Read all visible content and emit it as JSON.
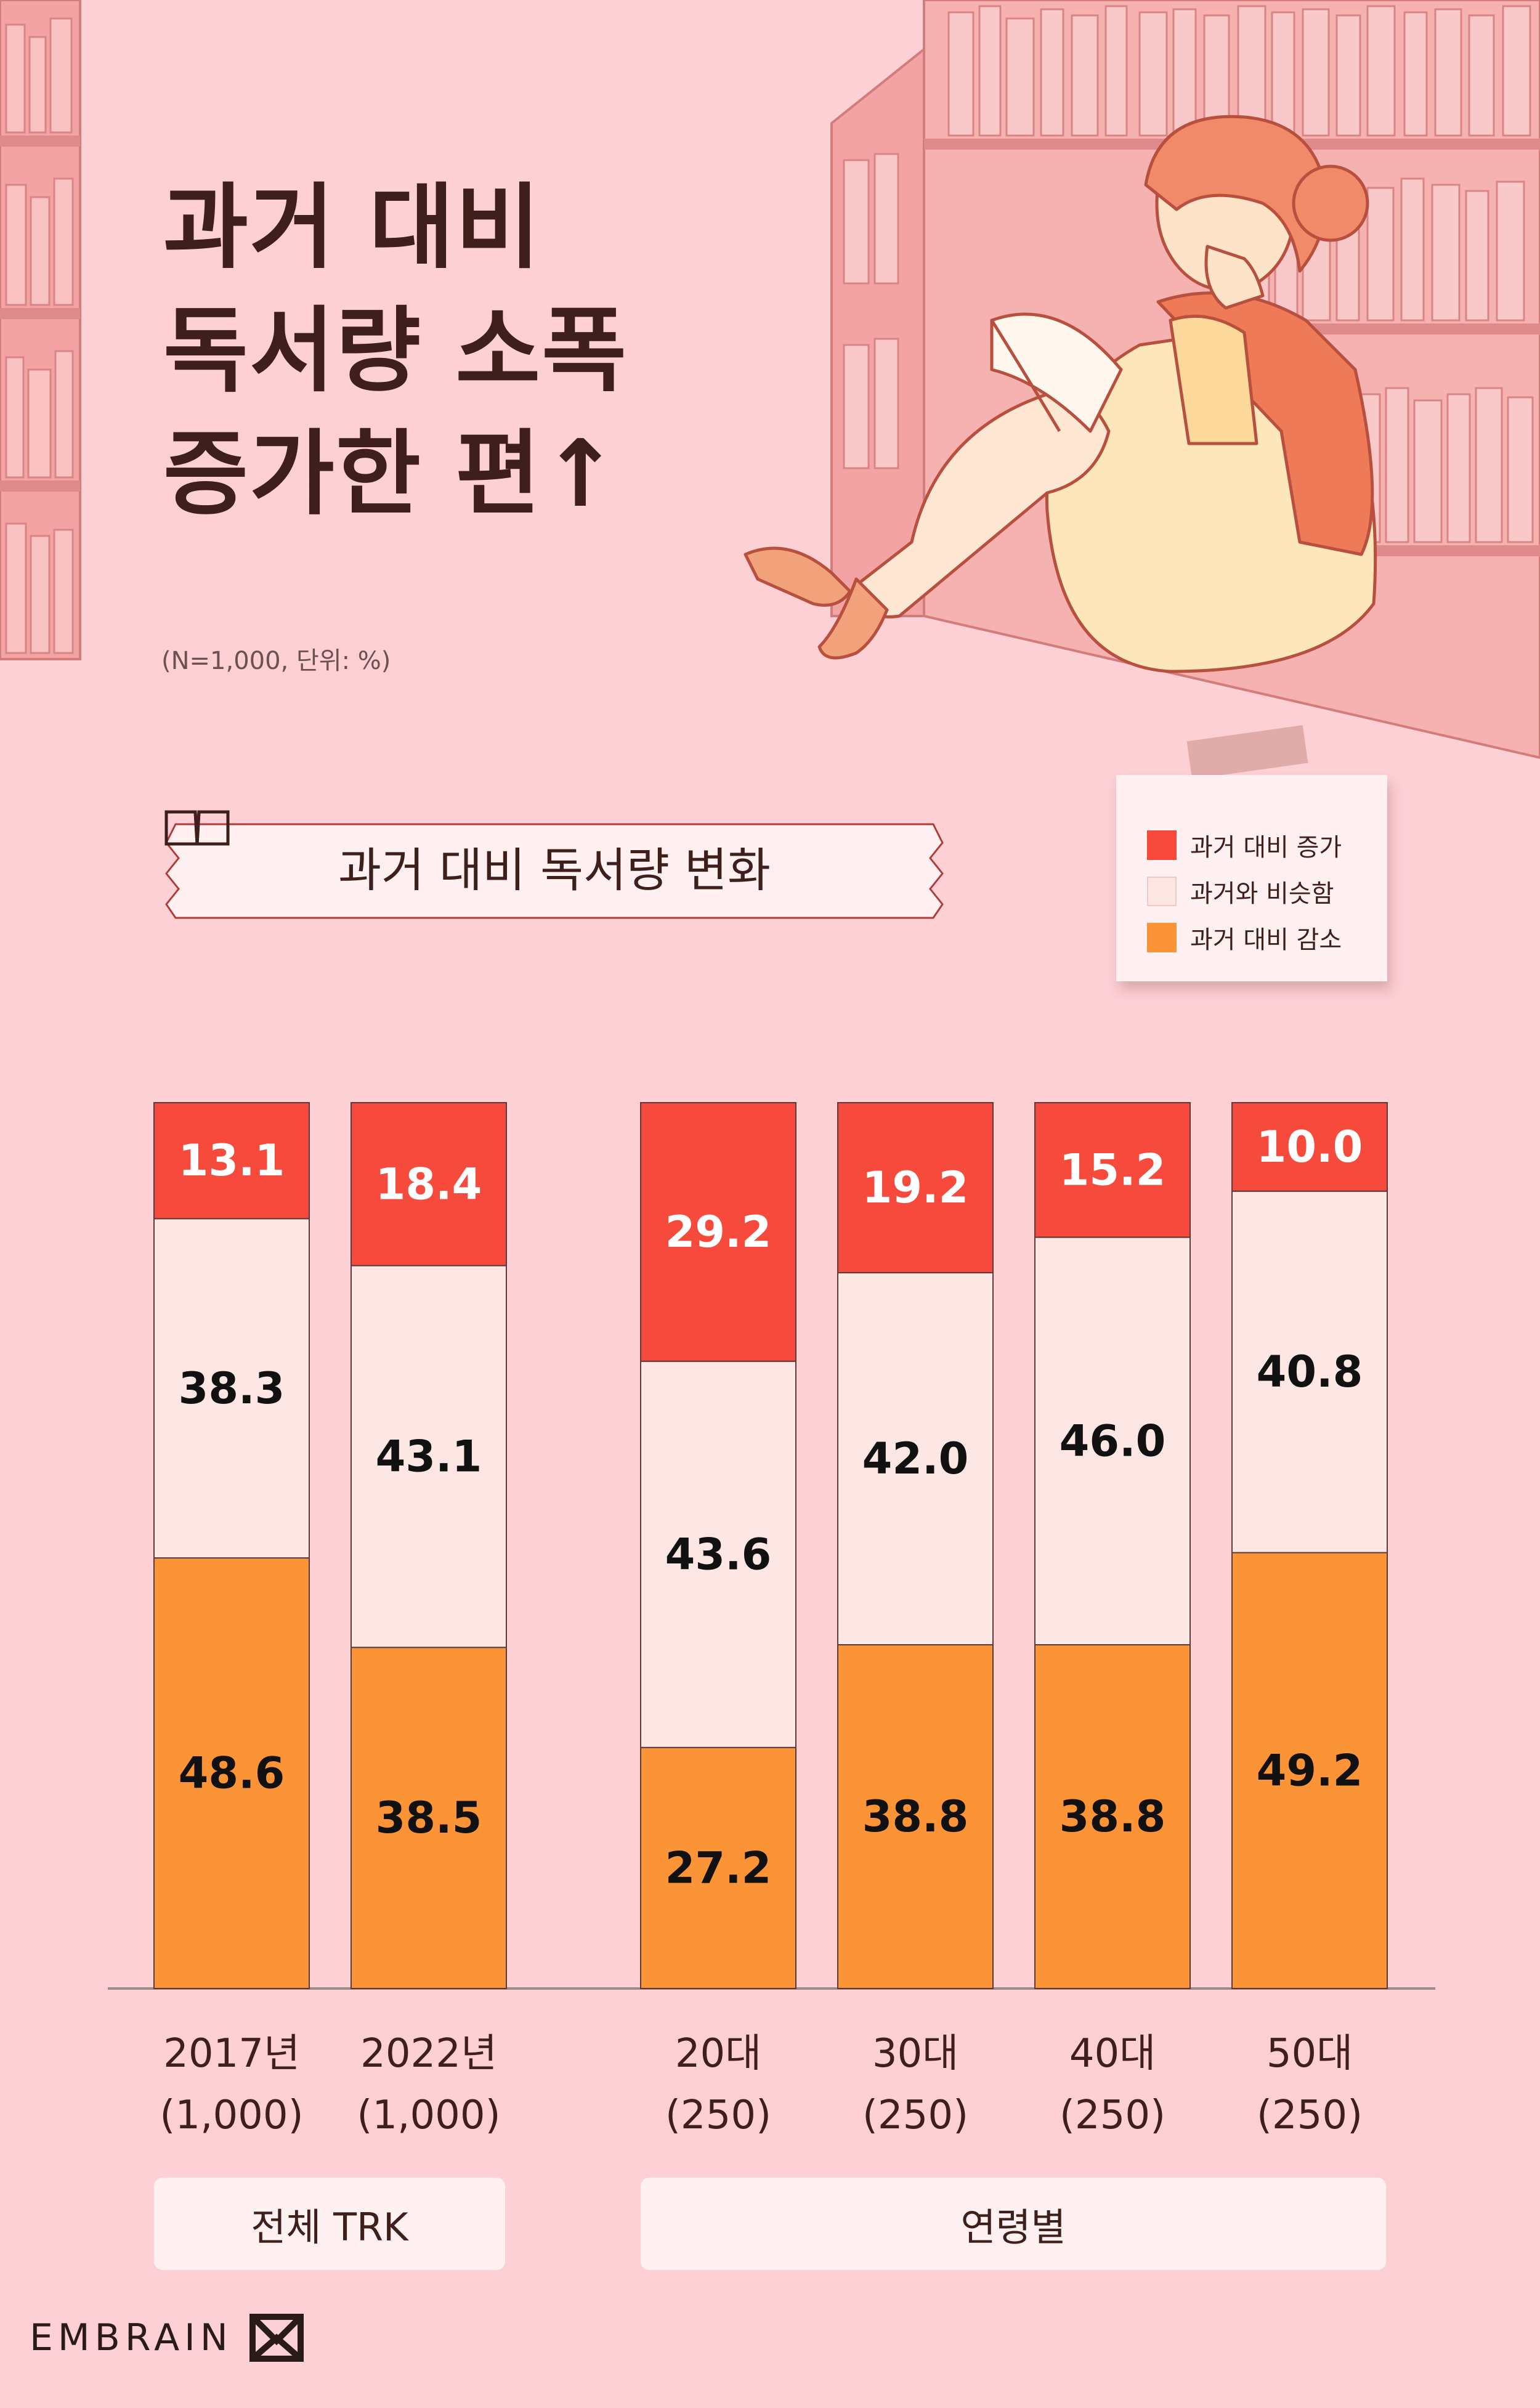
{
  "title_lines": [
    "과거 대비",
    "독서량 소폭",
    "증가한 편↑"
  ],
  "note": "(N=1,000, 단위: %)",
  "banner": "과거 대비 독서량 변화",
  "legend": [
    {
      "label": "과거 대비 증가",
      "color": "#f54a3c"
    },
    {
      "label": "과거와 비슷함",
      "color": "#fde7e4"
    },
    {
      "label": "과거 대비 감소",
      "color": "#fb9436"
    }
  ],
  "groups": [
    {
      "label": "전체 TRK"
    },
    {
      "label": "연령별"
    }
  ],
  "brand": "EMBRAIN",
  "chart_data": {
    "type": "bar",
    "stacked": true,
    "normalized_to": 100,
    "categories": [
      [
        "2017년",
        "(1,000)"
      ],
      [
        "2022년",
        "(1,000)"
      ],
      [
        "20대",
        "(250)"
      ],
      [
        "30대",
        "(250)"
      ],
      [
        "40대",
        "(250)"
      ],
      [
        "50대",
        "(250)"
      ]
    ],
    "series": [
      {
        "name": "과거 대비 증가",
        "color": "#f54a3c",
        "text_color": "#ffffff",
        "values": [
          "13.1",
          "18.4",
          "29.2",
          "19.2",
          "15.2",
          "10.0"
        ]
      },
      {
        "name": "과거와 비슷함",
        "color": "#fde7e4",
        "text_color": "#111111",
        "values": [
          "38.3",
          "43.1",
          "43.6",
          "42.0",
          "46.0",
          "40.8"
        ]
      },
      {
        "name": "과거 대비 감소",
        "color": "#fb9436",
        "text_color": "#111111",
        "values": [
          "48.6",
          "38.5",
          "27.2",
          "38.8",
          "38.8",
          "49.2"
        ]
      }
    ],
    "ylim": [
      0,
      100
    ],
    "legend_position": "top-right",
    "grid": false
  }
}
